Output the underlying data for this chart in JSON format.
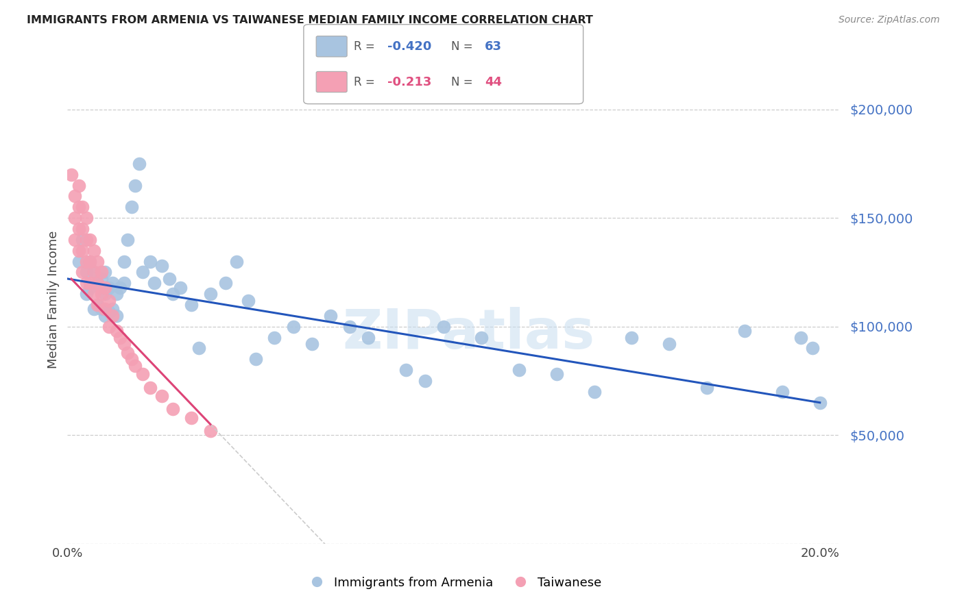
{
  "title": "IMMIGRANTS FROM ARMENIA VS TAIWANESE MEDIAN FAMILY INCOME CORRELATION CHART",
  "source": "Source: ZipAtlas.com",
  "ylabel": "Median Family Income",
  "xlim": [
    0.0,
    0.205
  ],
  "ylim": [
    0,
    225000
  ],
  "yticks": [
    0,
    50000,
    100000,
    150000,
    200000
  ],
  "xticks": [
    0.0,
    0.04,
    0.08,
    0.12,
    0.16,
    0.2
  ],
  "watermark": "ZIPatlas",
  "background_color": "#ffffff",
  "grid_color": "#c8c8c8",
  "scatter_blue": "#a8c4e0",
  "scatter_pink": "#f4a0b4",
  "trend_blue": "#2255bb",
  "trend_pink": "#dd4477",
  "trend_gray": "#cccccc",
  "label_blue_color": "#4472c4",
  "label_pink_color": "#e05080",
  "ytick_color": "#4472c4",
  "legend_entries": [
    {
      "label": "Immigrants from Armenia",
      "R": "-0.420",
      "N": "63"
    },
    {
      "label": "Taiwanese",
      "R": "-0.213",
      "N": "44"
    }
  ],
  "blue_points_x": [
    0.003,
    0.004,
    0.005,
    0.005,
    0.006,
    0.006,
    0.007,
    0.007,
    0.008,
    0.008,
    0.009,
    0.009,
    0.01,
    0.01,
    0.01,
    0.011,
    0.011,
    0.012,
    0.012,
    0.013,
    0.013,
    0.014,
    0.015,
    0.015,
    0.016,
    0.017,
    0.018,
    0.019,
    0.02,
    0.022,
    0.023,
    0.025,
    0.027,
    0.028,
    0.03,
    0.033,
    0.035,
    0.038,
    0.042,
    0.045,
    0.048,
    0.05,
    0.055,
    0.06,
    0.065,
    0.07,
    0.075,
    0.08,
    0.09,
    0.095,
    0.1,
    0.11,
    0.12,
    0.13,
    0.14,
    0.15,
    0.16,
    0.17,
    0.18,
    0.19,
    0.195,
    0.198,
    0.2
  ],
  "blue_points_y": [
    130000,
    140000,
    125000,
    115000,
    130000,
    118000,
    125000,
    108000,
    120000,
    110000,
    122000,
    108000,
    125000,
    115000,
    105000,
    118000,
    107000,
    120000,
    108000,
    115000,
    105000,
    118000,
    130000,
    120000,
    140000,
    155000,
    165000,
    175000,
    125000,
    130000,
    120000,
    128000,
    122000,
    115000,
    118000,
    110000,
    90000,
    115000,
    120000,
    130000,
    112000,
    85000,
    95000,
    100000,
    92000,
    105000,
    100000,
    95000,
    80000,
    75000,
    100000,
    95000,
    80000,
    78000,
    70000,
    95000,
    92000,
    72000,
    98000,
    70000,
    95000,
    90000,
    65000
  ],
  "pink_points_x": [
    0.001,
    0.002,
    0.002,
    0.002,
    0.003,
    0.003,
    0.003,
    0.003,
    0.004,
    0.004,
    0.004,
    0.004,
    0.005,
    0.005,
    0.005,
    0.005,
    0.006,
    0.006,
    0.006,
    0.007,
    0.007,
    0.007,
    0.008,
    0.008,
    0.008,
    0.009,
    0.009,
    0.01,
    0.01,
    0.011,
    0.011,
    0.012,
    0.013,
    0.014,
    0.015,
    0.016,
    0.017,
    0.018,
    0.02,
    0.022,
    0.025,
    0.028,
    0.033,
    0.038
  ],
  "pink_points_y": [
    170000,
    160000,
    150000,
    140000,
    165000,
    155000,
    145000,
    135000,
    155000,
    145000,
    135000,
    125000,
    150000,
    140000,
    130000,
    120000,
    140000,
    130000,
    120000,
    135000,
    125000,
    115000,
    130000,
    120000,
    110000,
    125000,
    115000,
    118000,
    108000,
    112000,
    100000,
    105000,
    98000,
    95000,
    92000,
    88000,
    85000,
    82000,
    78000,
    72000,
    68000,
    62000,
    58000,
    52000
  ],
  "blue_trend_x0": 0.0,
  "blue_trend_y0": 122000,
  "blue_trend_x1": 0.2,
  "blue_trend_y1": 65000,
  "pink_trend_x0": 0.001,
  "pink_trend_y0": 122000,
  "pink_trend_x1": 0.038,
  "pink_trend_y1": 55000
}
